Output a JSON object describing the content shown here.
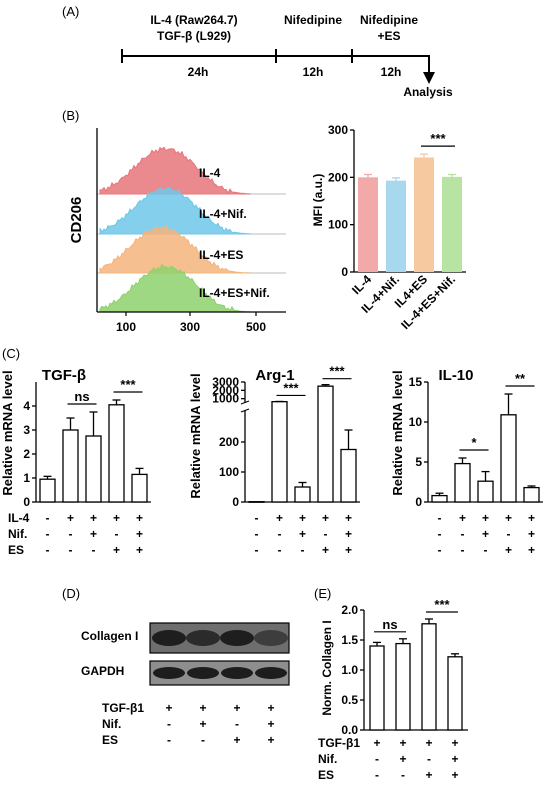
{
  "panel_labels": {
    "A": "(A)",
    "B": "(B)",
    "C": "(C)",
    "D": "(D)",
    "E": "(E)"
  },
  "timeline": {
    "stage1_line1": "IL-4 (Raw264.7)",
    "stage1_line2": "TGF-β (L929)",
    "stage2": "Nifedipine",
    "stage3_line1": "Nifedipine",
    "stage3_line2": "+ES",
    "dur1": "24h",
    "dur2": "12h",
    "dur3": "12h",
    "end_label": "Analysis"
  },
  "histogram": {
    "ylabel": "CD206",
    "xticks": [
      "100",
      "300",
      "500"
    ],
    "tracks": [
      {
        "label": "IL-4",
        "color": "#e8757a"
      },
      {
        "label": "IL-4+Nif.",
        "color": "#6fc7e8"
      },
      {
        "label": "IL-4+ES",
        "color": "#f5b47b"
      },
      {
        "label": "IL-4+ES+Nif.",
        "color": "#8ed16c"
      }
    ]
  },
  "chart_data": [
    {
      "type": "bar",
      "panel": "B",
      "ylabel": "MFI (a.u.)",
      "categories": [
        "IL-4",
        "IL-4+Nif.",
        "IL4+ES",
        "IL-4+ES+Nif."
      ],
      "values": [
        200,
        193,
        242,
        201
      ],
      "errors": [
        6,
        6,
        7,
        5
      ],
      "colors": [
        "#f2a9a9",
        "#a7d8ee",
        "#f7c9a0",
        "#b7e3a3"
      ],
      "ylim": [
        0,
        300
      ],
      "yticks": [
        0,
        100,
        200,
        300
      ],
      "significance": [
        {
          "from": 2,
          "to": 3,
          "label": "***"
        }
      ]
    },
    {
      "type": "bar",
      "panel": "C",
      "title": "TGF-β",
      "ylabel": "Relative mRNA level",
      "values": [
        0.95,
        3.0,
        2.75,
        4.05,
        1.15
      ],
      "errors": [
        0.12,
        0.5,
        1.0,
        0.2,
        0.25
      ],
      "ylim": [
        0,
        5
      ],
      "yticks": [
        0,
        1,
        2,
        3,
        4
      ],
      "significance": [
        {
          "from": 1,
          "to": 2,
          "label": "ns"
        },
        {
          "from": 3,
          "to": 4,
          "label": "***"
        }
      ],
      "conditions": {
        "IL-4": [
          "-",
          "+",
          "+",
          "+",
          "+"
        ],
        "Nif.": [
          "-",
          "-",
          "+",
          "-",
          "+"
        ],
        "ES": [
          "-",
          "-",
          "-",
          "+",
          "+"
        ]
      }
    },
    {
      "type": "bar",
      "panel": "C",
      "title": "Arg-1",
      "ylabel": "Relative mRNA level",
      "values": [
        1,
        640,
        50,
        2500,
        175
      ],
      "errors": [
        0,
        25,
        15,
        180,
        65
      ],
      "axis_break": [
        300,
        600
      ],
      "yticks": [
        0,
        100,
        200,
        1000,
        2000,
        3000
      ],
      "significance": [
        {
          "from": 1,
          "to": 2,
          "label": "***"
        },
        {
          "from": 3,
          "to": 4,
          "label": "***"
        }
      ],
      "conditions": {
        "IL-4": [
          "-",
          "+",
          "+",
          "+",
          "+"
        ],
        "Nif.": [
          "-",
          "-",
          "+",
          "-",
          "+"
        ],
        "ES": [
          "-",
          "-",
          "-",
          "+",
          "+"
        ]
      }
    },
    {
      "type": "bar",
      "panel": "C",
      "title": "IL-10",
      "ylabel": "Relative mRNA level",
      "values": [
        0.8,
        4.8,
        2.6,
        10.9,
        1.8
      ],
      "errors": [
        0.3,
        0.7,
        1.2,
        2.6,
        0.2
      ],
      "ylim": [
        0,
        15
      ],
      "yticks": [
        0,
        5,
        10,
        15
      ],
      "significance": [
        {
          "from": 1,
          "to": 2,
          "label": "*"
        },
        {
          "from": 3,
          "to": 4,
          "label": "**"
        }
      ],
      "conditions": {
        "IL-4": [
          "-",
          "+",
          "+",
          "+",
          "+"
        ],
        "Nif.": [
          "-",
          "-",
          "+",
          "-",
          "+"
        ],
        "ES": [
          "-",
          "-",
          "-",
          "+",
          "+"
        ]
      }
    },
    {
      "type": "bar",
      "panel": "E",
      "ylabel": "Norm. Collagen I",
      "values": [
        1.4,
        1.44,
        1.77,
        1.22
      ],
      "errors": [
        0.06,
        0.08,
        0.08,
        0.05
      ],
      "ylim": [
        0,
        2.0
      ],
      "yticks": [
        "0.0",
        "0.5",
        "1.0",
        "1.5",
        "2.0"
      ],
      "significance": [
        {
          "from": 0,
          "to": 1,
          "label": "ns"
        },
        {
          "from": 2,
          "to": 3,
          "label": "***"
        }
      ],
      "conditions": {
        "TGF-β1": [
          "+",
          "+",
          "+",
          "+"
        ],
        "Nif.": [
          "-",
          "+",
          "-",
          "+"
        ],
        "ES": [
          "-",
          "-",
          "+",
          "+"
        ]
      }
    }
  ],
  "condition_rows_C": [
    "IL-4",
    "Nif.",
    "ES"
  ],
  "blot": {
    "rows": [
      "Collagen I",
      "GAPDH"
    ],
    "conditions": {
      "TGF-β1": [
        "+",
        "+",
        "+",
        "+"
      ],
      "Nif.": [
        "-",
        "+",
        "-",
        "+"
      ],
      "ES": [
        "-",
        "-",
        "+",
        "+"
      ]
    }
  }
}
